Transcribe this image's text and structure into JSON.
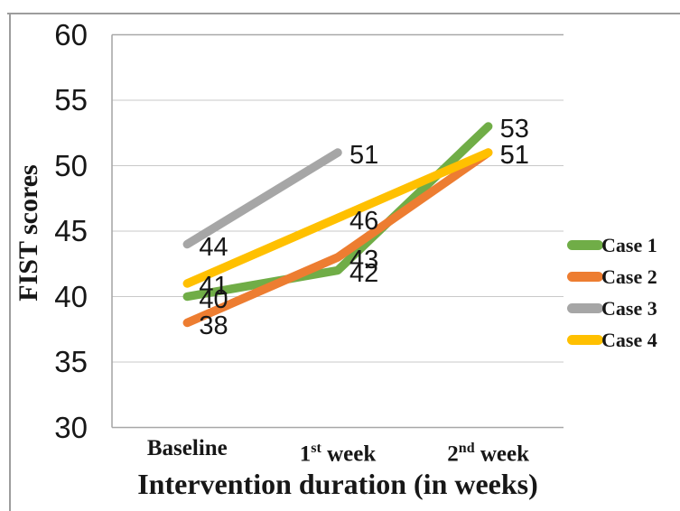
{
  "figure": {
    "frame_color": "#9d9d9d",
    "background": "#ffffff"
  },
  "chart_data": {
    "type": "line",
    "title": "",
    "xlabel": "Intervention duration (in weeks)",
    "ylabel": "FIST scores",
    "categories": [
      "Baseline",
      "1st week",
      "2nd week"
    ],
    "categories_rich": [
      [
        {
          "t": "Baseline"
        }
      ],
      [
        {
          "t": "1"
        },
        {
          "t": "st",
          "sup": true
        },
        {
          "t": " week"
        }
      ],
      [
        {
          "t": "2"
        },
        {
          "t": "nd",
          "sup": true
        },
        {
          "t": " week"
        }
      ]
    ],
    "yticks": [
      30,
      35,
      40,
      45,
      50,
      55,
      60
    ],
    "ylim": [
      30,
      60
    ],
    "grid": "horizontal",
    "data_labels": true,
    "legend_position": "right",
    "axis_color": "#a8a8a8",
    "gridline_color": "#c9c9c9",
    "series": [
      {
        "name": "Case 1",
        "color": "#70AD47",
        "values": [
          40,
          42,
          53
        ]
      },
      {
        "name": "Case 2",
        "color": "#ED7D31",
        "values": [
          38,
          43,
          51
        ]
      },
      {
        "name": "Case 3",
        "color": "#A6A6A6",
        "values": [
          44,
          51,
          null
        ]
      },
      {
        "name": "Case 4",
        "color": "#FFC000",
        "values": [
          41,
          46,
          51
        ]
      }
    ]
  }
}
